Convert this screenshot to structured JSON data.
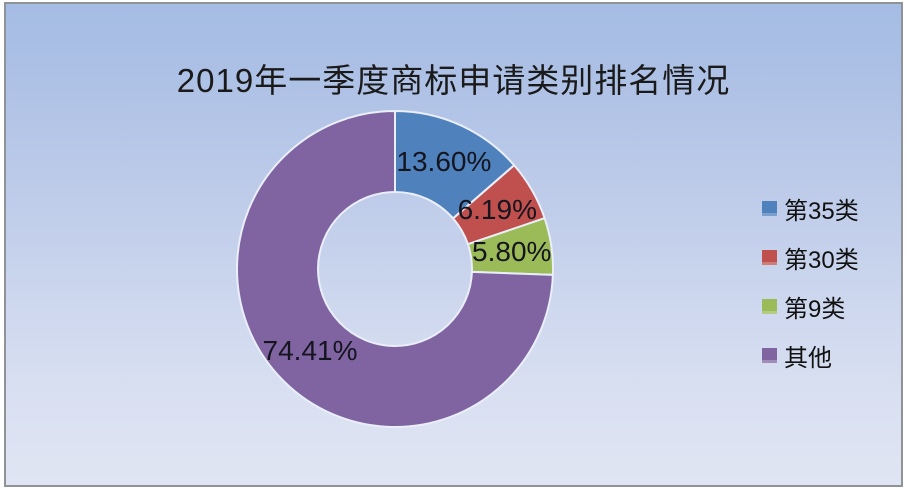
{
  "chart_data": {
    "type": "pie",
    "subtype": "donut",
    "title": "2019年一季度商标申请类别排名情况",
    "categories": [
      "第35类",
      "第30类",
      "第9类",
      "其他"
    ],
    "values": [
      13.6,
      6.19,
      5.8,
      74.41
    ],
    "labels": [
      "13.60%",
      "6.19%",
      "5.80%",
      "74.41%"
    ],
    "colors": [
      "#4f81bd",
      "#c0504d",
      "#9bbb59",
      "#8064a2"
    ],
    "legend_position": "right",
    "start_angle_deg": 0,
    "direction": "clockwise",
    "inner_radius_ratio": 0.49,
    "slice_separator_color": "#e9eef8",
    "background": {
      "top": "#a5bce4",
      "bottom": "#e0e5f3"
    },
    "frame_border_color": "#8f9296"
  }
}
